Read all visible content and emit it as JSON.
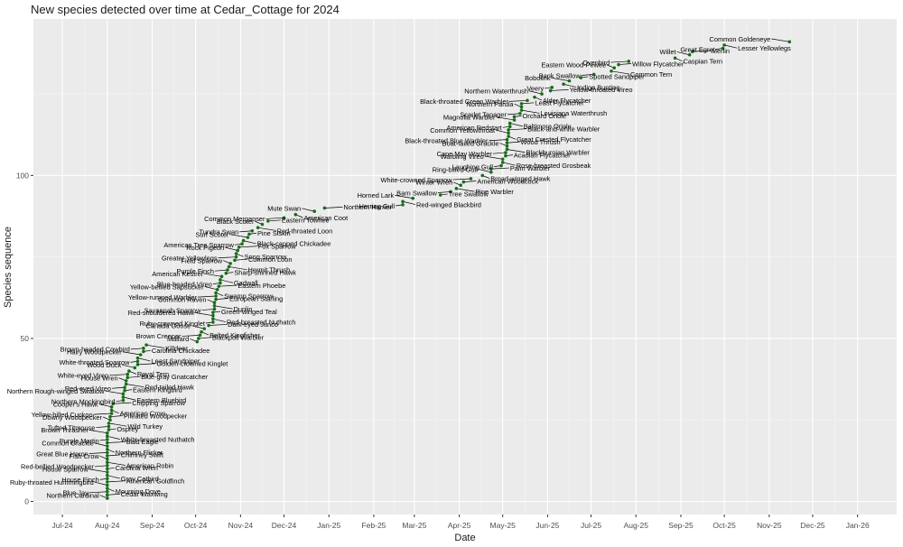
{
  "chart_data": {
    "type": "scatter",
    "title": "New species detected over time at Cedar_Cottage for 2024",
    "xlabel": "Date",
    "ylabel": "Species sequence",
    "x_domain": [
      "2024-06-11",
      "2026-01-28"
    ],
    "ylim": [
      -4,
      148
    ],
    "y_ticks": [
      0,
      50,
      100
    ],
    "x_ticks": [
      {
        "date": "2024-07-01",
        "label": "Jul-24"
      },
      {
        "date": "2024-08-01",
        "label": "Aug-24"
      },
      {
        "date": "2024-09-01",
        "label": "Sep-24"
      },
      {
        "date": "2024-10-01",
        "label": "Oct-24"
      },
      {
        "date": "2024-11-01",
        "label": "Nov-24"
      },
      {
        "date": "2024-12-01",
        "label": "Dec-24"
      },
      {
        "date": "2025-01-01",
        "label": "Jan-25"
      },
      {
        "date": "2025-02-01",
        "label": "Feb-25"
      },
      {
        "date": "2025-03-01",
        "label": "Mar-25"
      },
      {
        "date": "2025-04-01",
        "label": "Apr-25"
      },
      {
        "date": "2025-05-01",
        "label": "May-25"
      },
      {
        "date": "2025-06-01",
        "label": "Jun-25"
      },
      {
        "date": "2025-07-01",
        "label": "Jul-25"
      },
      {
        "date": "2025-08-01",
        "label": "Aug-25"
      },
      {
        "date": "2025-09-01",
        "label": "Sep-25"
      },
      {
        "date": "2025-10-01",
        "label": "Oct-25"
      },
      {
        "date": "2025-11-01",
        "label": "Nov-25"
      },
      {
        "date": "2025-12-01",
        "label": "Dec-25"
      },
      {
        "date": "2026-01-01",
        "label": "Jan-26"
      }
    ],
    "grid": true,
    "point_color": "#1a6b1a",
    "label_color": "#000000",
    "panel_background": "#ebebeb",
    "points": [
      {
        "species": "Northern Cardinal",
        "date": "2024-08-01",
        "seq": 1
      },
      {
        "species": "Cedar Waxwing",
        "date": "2024-08-01",
        "seq": 2
      },
      {
        "species": "Blue Jay",
        "date": "2024-08-01",
        "seq": 3
      },
      {
        "species": "Mourning Dove",
        "date": "2024-08-01",
        "seq": 4
      },
      {
        "species": "Ruby-throated Hummingbird",
        "date": "2024-08-01",
        "seq": 5
      },
      {
        "species": "American Goldfinch",
        "date": "2024-08-01",
        "seq": 6
      },
      {
        "species": "House Finch",
        "date": "2024-08-01",
        "seq": 7
      },
      {
        "species": "Gray Catbird",
        "date": "2024-08-01",
        "seq": 8
      },
      {
        "species": "House Sparrow",
        "date": "2024-08-01",
        "seq": 9
      },
      {
        "species": "Carolina Wren",
        "date": "2024-08-01",
        "seq": 10
      },
      {
        "species": "Red-bellied Woodpecker",
        "date": "2024-08-01",
        "seq": 11
      },
      {
        "species": "American Robin",
        "date": "2024-08-01",
        "seq": 12
      },
      {
        "species": "Fish Crow",
        "date": "2024-08-01",
        "seq": 13
      },
      {
        "species": "Chimney Swift",
        "date": "2024-08-01",
        "seq": 14
      },
      {
        "species": "Great Blue Heron",
        "date": "2024-08-01",
        "seq": 15
      },
      {
        "species": "Northern Flicker",
        "date": "2024-08-01",
        "seq": 16
      },
      {
        "species": "Common Grackle",
        "date": "2024-08-01",
        "seq": 17
      },
      {
        "species": "Bald Eagle",
        "date": "2024-08-01",
        "seq": 18
      },
      {
        "species": "Purple Martin",
        "date": "2024-08-01",
        "seq": 19
      },
      {
        "species": "White-breasted Nuthatch",
        "date": "2024-08-01",
        "seq": 20
      },
      {
        "species": "Brown Thrasher",
        "date": "2024-08-01",
        "seq": 21
      },
      {
        "species": "Osprey",
        "date": "2024-08-02",
        "seq": 22
      },
      {
        "species": "Tufted Titmouse",
        "date": "2024-08-02",
        "seq": 23
      },
      {
        "species": "Wild Turkey",
        "date": "2024-08-02",
        "seq": 24
      },
      {
        "species": "Downy Woodpecker",
        "date": "2024-08-03",
        "seq": 25
      },
      {
        "species": "Pileated Woodpecker",
        "date": "2024-08-03",
        "seq": 26
      },
      {
        "species": "Yellow-billed Cuckoo",
        "date": "2024-08-04",
        "seq": 27
      },
      {
        "species": "American Crow",
        "date": "2024-08-04",
        "seq": 28
      },
      {
        "species": "Cooper's Hawk",
        "date": "2024-08-04",
        "seq": 29
      },
      {
        "species": "Chipping Sparrow",
        "date": "2024-08-05",
        "seq": 30
      },
      {
        "species": "Northern Mockingbird",
        "date": "2024-08-12",
        "seq": 31
      },
      {
        "species": "Eastern Bluebird",
        "date": "2024-08-12",
        "seq": 32
      },
      {
        "species": "Northern Rough-winged Swallow",
        "date": "2024-08-12",
        "seq": 33
      },
      {
        "species": "Eastern Kingbird",
        "date": "2024-08-13",
        "seq": 34
      },
      {
        "species": "Red-eyed Vireo",
        "date": "2024-08-13",
        "seq": 35
      },
      {
        "species": "Red-tailed Hawk",
        "date": "2024-08-14",
        "seq": 36
      },
      {
        "species": "House Wren",
        "date": "2024-08-14",
        "seq": 37
      },
      {
        "species": "Blue-gray Gnatcatcher",
        "date": "2024-08-15",
        "seq": 38
      },
      {
        "species": "White-eyed Vireo",
        "date": "2024-08-15",
        "seq": 39
      },
      {
        "species": "Royal Tern",
        "date": "2024-08-16",
        "seq": 40
      },
      {
        "species": "Wood Duck",
        "date": "2024-08-20",
        "seq": 41
      },
      {
        "species": "Golden-crowned Kinglet",
        "date": "2024-08-22",
        "seq": 42
      },
      {
        "species": "White-throated Sparrow",
        "date": "2024-08-22",
        "seq": 43
      },
      {
        "species": "Least Sandpiper",
        "date": "2024-08-22",
        "seq": 44
      },
      {
        "species": "Hairy Woodpecker",
        "date": "2024-08-24",
        "seq": 45
      },
      {
        "species": "Carolina Chickadee",
        "date": "2024-08-26",
        "seq": 46
      },
      {
        "species": "Brown-headed Cowbird",
        "date": "2024-08-26",
        "seq": 47
      },
      {
        "species": "Killdeer",
        "date": "2024-08-28",
        "seq": 48
      },
      {
        "species": "Mallard",
        "date": "2024-10-02",
        "seq": 49
      },
      {
        "species": "Blackpoll Warbler",
        "date": "2024-10-03",
        "seq": 50
      },
      {
        "species": "Brown Creeper",
        "date": "2024-10-04",
        "seq": 51
      },
      {
        "species": "Belted Kingfisher",
        "date": "2024-10-05",
        "seq": 52
      },
      {
        "species": "Canada Goose",
        "date": "2024-10-07",
        "seq": 53
      },
      {
        "species": "Dark-eyed Junco",
        "date": "2024-10-10",
        "seq": 54
      },
      {
        "species": "Ruby-crowned Kinglet",
        "date": "2024-10-13",
        "seq": 55
      },
      {
        "species": "Red-breasted Nuthatch",
        "date": "2024-10-13",
        "seq": 56
      },
      {
        "species": "Red-shouldered Hawk",
        "date": "2024-10-13",
        "seq": 57
      },
      {
        "species": "Green-winged Teal",
        "date": "2024-10-13",
        "seq": 58
      },
      {
        "species": "Savannah Sparrow",
        "date": "2024-10-14",
        "seq": 59
      },
      {
        "species": "Dunlin",
        "date": "2024-10-14",
        "seq": 60
      },
      {
        "species": "Common Raven",
        "date": "2024-10-14",
        "seq": 61
      },
      {
        "species": "European Starling",
        "date": "2024-10-15",
        "seq": 62
      },
      {
        "species": "Yellow-rumped Warbler",
        "date": "2024-10-15",
        "seq": 63
      },
      {
        "species": "Swamp Sparrow",
        "date": "2024-10-15",
        "seq": 64
      },
      {
        "species": "Yellow-bellied Sapsucker",
        "date": "2024-10-16",
        "seq": 65
      },
      {
        "species": "Eastern Phoebe",
        "date": "2024-10-17",
        "seq": 66
      },
      {
        "species": "Blue-headed Vireo",
        "date": "2024-10-18",
        "seq": 67
      },
      {
        "species": "Gadwall",
        "date": "2024-10-18",
        "seq": 68
      },
      {
        "species": "American Kestrel",
        "date": "2024-10-19",
        "seq": 69
      },
      {
        "species": "Sharp-shinned Hawk",
        "date": "2024-10-22",
        "seq": 70
      },
      {
        "species": "Purple Finch",
        "date": "2024-10-23",
        "seq": 71
      },
      {
        "species": "Hermit Thrush",
        "date": "2024-10-24",
        "seq": 72
      },
      {
        "species": "Field Sparrow",
        "date": "2024-10-25",
        "seq": 73
      },
      {
        "species": "Common Loon",
        "date": "2024-10-28",
        "seq": 74
      },
      {
        "species": "Greater Yellowlegs",
        "date": "2024-10-29",
        "seq": 75
      },
      {
        "species": "Song Sparrow",
        "date": "2024-10-29",
        "seq": 76
      },
      {
        "species": "Rock Pigeon",
        "date": "2024-10-30",
        "seq": 77
      },
      {
        "species": "Fox Sparrow",
        "date": "2024-10-31",
        "seq": 78
      },
      {
        "species": "American Tree Sparrow",
        "date": "2024-11-02",
        "seq": 79
      },
      {
        "species": "Black-capped Chickadee",
        "date": "2024-11-03",
        "seq": 80
      },
      {
        "species": "Surf Scoter",
        "date": "2024-11-06",
        "seq": 81
      },
      {
        "species": "Pine Siskin",
        "date": "2024-11-07",
        "seq": 82
      },
      {
        "species": "Tundra Swan",
        "date": "2024-11-09",
        "seq": 83
      },
      {
        "species": "Red-throated Loon",
        "date": "2024-11-13",
        "seq": 84
      },
      {
        "species": "Black Scoter",
        "date": "2024-11-16",
        "seq": 85
      },
      {
        "species": "Eastern Towhee",
        "date": "2024-11-20",
        "seq": 86
      },
      {
        "species": "Common Merganser",
        "date": "2024-12-01",
        "seq": 87
      },
      {
        "species": "American Coot",
        "date": "2024-12-09",
        "seq": 88
      },
      {
        "species": "Mute Swan",
        "date": "2024-12-22",
        "seq": 89
      },
      {
        "species": "Northern Harrier",
        "date": "2024-12-29",
        "seq": 90
      },
      {
        "species": "Herring Gull",
        "date": "2025-02-21",
        "seq": 91
      },
      {
        "species": "Red-winged Blackbird",
        "date": "2025-02-21",
        "seq": 92
      },
      {
        "species": "Horned Lark",
        "date": "2025-02-28",
        "seq": 93
      },
      {
        "species": "Tree Swallow",
        "date": "2025-03-19",
        "seq": 94
      },
      {
        "species": "Barn Swallow",
        "date": "2025-03-26",
        "seq": 95
      },
      {
        "species": "Pine Warbler",
        "date": "2025-03-30",
        "seq": 96
      },
      {
        "species": "Winter Wren",
        "date": "2025-04-02",
        "seq": 97
      },
      {
        "species": "American Woodcock",
        "date": "2025-04-04",
        "seq": 98
      },
      {
        "species": "White-crowned Sparrow",
        "date": "2025-04-09",
        "seq": 99
      },
      {
        "species": "Broad-winged Hawk",
        "date": "2025-04-17",
        "seq": 100
      },
      {
        "species": "Ring-billed Gull",
        "date": "2025-04-23",
        "seq": 101
      },
      {
        "species": "Palm Warbler",
        "date": "2025-04-23",
        "seq": 102
      },
      {
        "species": "Laughing Gull",
        "date": "2025-04-30",
        "seq": 103
      },
      {
        "species": "Rose-breasted Grosbeak",
        "date": "2025-05-01",
        "seq": 104
      },
      {
        "species": "Warbling Vireo",
        "date": "2025-05-01",
        "seq": 105
      },
      {
        "species": "Acadian Flycatcher",
        "date": "2025-05-03",
        "seq": 106
      },
      {
        "species": "Cape May Warbler",
        "date": "2025-05-03",
        "seq": 107
      },
      {
        "species": "Blackburnian Warbler",
        "date": "2025-05-04",
        "seq": 108
      },
      {
        "species": "Boat-tailed Grackle",
        "date": "2025-05-04",
        "seq": 109
      },
      {
        "species": "Wood Thrush",
        "date": "2025-05-04",
        "seq": 110
      },
      {
        "species": "Black-throated Blue Warbler",
        "date": "2025-05-04",
        "seq": 111
      },
      {
        "species": "Great Crested Flycatcher",
        "date": "2025-05-05",
        "seq": 112
      },
      {
        "species": "Common Yellowthroat",
        "date": "2025-05-05",
        "seq": 113
      },
      {
        "species": "Black-and-white Warbler",
        "date": "2025-05-05",
        "seq": 114
      },
      {
        "species": "American Redstart",
        "date": "2025-05-06",
        "seq": 115
      },
      {
        "species": "Baltimore Oriole",
        "date": "2025-05-06",
        "seq": 116
      },
      {
        "species": "Magnolia Warbler",
        "date": "2025-05-09",
        "seq": 117
      },
      {
        "species": "Orchard Oriole",
        "date": "2025-05-09",
        "seq": 118
      },
      {
        "species": "Scarlet Tanager",
        "date": "2025-05-13",
        "seq": 119
      },
      {
        "species": "Louisiana Waterthrush",
        "date": "2025-05-14",
        "seq": 120
      },
      {
        "species": "Northern Parula",
        "date": "2025-05-14",
        "seq": 121
      },
      {
        "species": "Least Flycatcher",
        "date": "2025-05-14",
        "seq": 122
      },
      {
        "species": "Black-throated Green Warbler",
        "date": "2025-05-18",
        "seq": 123
      },
      {
        "species": "Alder Flycatcher",
        "date": "2025-05-23",
        "seq": 124
      },
      {
        "species": "Northern Waterthrush",
        "date": "2025-05-28",
        "seq": 125
      },
      {
        "species": "Yellow-throated Vireo",
        "date": "2025-06-03",
        "seq": 126
      },
      {
        "species": "Veery",
        "date": "2025-06-04",
        "seq": 127
      },
      {
        "species": "Indigo Bunting",
        "date": "2025-06-12",
        "seq": 128
      },
      {
        "species": "Bobolink",
        "date": "2025-06-16",
        "seq": 129
      },
      {
        "species": "Spotted Sandpiper",
        "date": "2025-06-24",
        "seq": 130
      },
      {
        "species": "Bank Swallow",
        "date": "2025-07-03",
        "seq": 131
      },
      {
        "species": "Common Tern",
        "date": "2025-07-15",
        "seq": 132
      },
      {
        "species": "Eastern Wood-Pewee",
        "date": "2025-07-17",
        "seq": 133
      },
      {
        "species": "Willow Flycatcher",
        "date": "2025-07-20",
        "seq": 134
      },
      {
        "species": "Ovenbird",
        "date": "2025-07-27",
        "seq": 135
      },
      {
        "species": "Caspian Tern",
        "date": "2025-08-28",
        "seq": 136
      },
      {
        "species": "Willet",
        "date": "2025-09-07",
        "seq": 137
      },
      {
        "species": "Merlin",
        "date": "2025-09-09",
        "seq": 138
      },
      {
        "species": "Great Egret",
        "date": "2025-09-30",
        "seq": 139
      },
      {
        "species": "Lesser Yellowlegs",
        "date": "2025-10-01",
        "seq": 140
      },
      {
        "species": "Common Goldeneye",
        "date": "2025-11-15",
        "seq": 141
      }
    ]
  }
}
